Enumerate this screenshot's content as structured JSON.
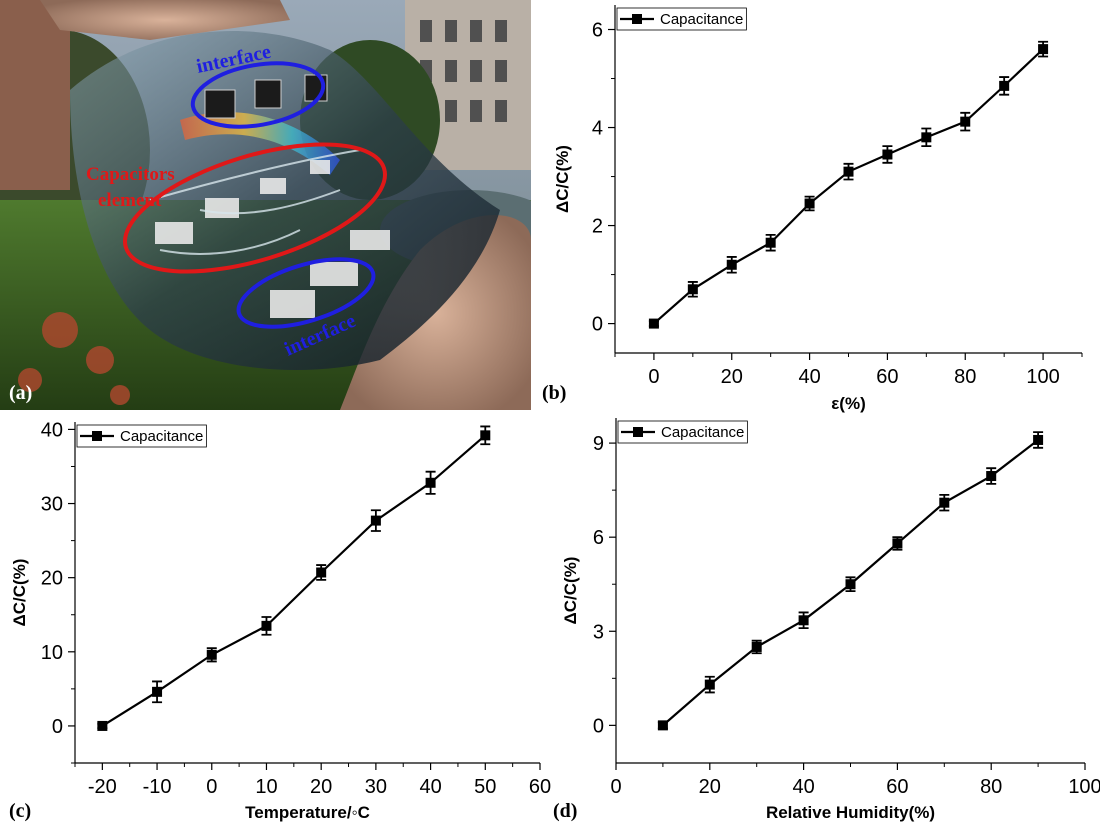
{
  "panels": {
    "a": "(a)",
    "b": "(b)",
    "c": "(c)",
    "d": "(d)"
  },
  "photo": {
    "annotations": {
      "interface_top": "interface",
      "capacitors_line1": "Capacitors",
      "capacitors_line2": "element",
      "interface_bottom": "interface"
    },
    "colors": {
      "interface": "#1f1fe0",
      "capacitors": "#e01818"
    }
  },
  "chart_data": [
    {
      "id": "b",
      "type": "line",
      "markers": "square",
      "xlabel": "ε(%)",
      "ylabel": "ΔC/C(%)",
      "xlim": [
        -10,
        110
      ],
      "ylim": [
        -0.6,
        6.5
      ],
      "xticks": [
        0,
        20,
        40,
        60,
        80,
        100
      ],
      "yticks": [
        0,
        2,
        4,
        6
      ],
      "legend": "top-left",
      "grid": false,
      "series": [
        {
          "name": "Capacitance",
          "x": [
            0,
            10,
            20,
            30,
            40,
            50,
            60,
            70,
            80,
            90,
            100
          ],
          "y": [
            0,
            0.7,
            1.2,
            1.65,
            2.45,
            3.1,
            3.45,
            3.8,
            4.12,
            4.85,
            5.6
          ],
          "err": [
            0.05,
            0.15,
            0.16,
            0.16,
            0.14,
            0.16,
            0.17,
            0.18,
            0.18,
            0.18,
            0.15
          ]
        }
      ]
    },
    {
      "id": "c",
      "type": "line",
      "markers": "square",
      "xlabel": "Temperature/◦C",
      "ylabel": "ΔC/C(%)",
      "xlim": [
        -25,
        60
      ],
      "ylim": [
        -5,
        41
      ],
      "xticks": [
        -20,
        -10,
        0,
        10,
        20,
        30,
        40,
        50,
        60
      ],
      "yticks": [
        0,
        10,
        20,
        30,
        40
      ],
      "legend": "top-left",
      "grid": false,
      "series": [
        {
          "name": "Capacitance",
          "x": [
            -20,
            -10,
            0,
            10,
            20,
            30,
            40,
            50
          ],
          "y": [
            0,
            4.6,
            9.6,
            13.5,
            20.7,
            27.7,
            32.8,
            39.2
          ],
          "err": [
            0.3,
            1.4,
            0.9,
            1.2,
            1.0,
            1.4,
            1.5,
            1.2
          ]
        }
      ]
    },
    {
      "id": "d",
      "type": "line",
      "markers": "square",
      "xlabel": "Relative Humidity(%)",
      "ylabel": "ΔC/C(%)",
      "xlim": [
        0,
        100
      ],
      "ylim": [
        -1.2,
        9.8
      ],
      "xticks": [
        0,
        20,
        40,
        60,
        80,
        100
      ],
      "yticks": [
        0,
        3,
        6,
        9
      ],
      "legend": "top-left",
      "grid": false,
      "series": [
        {
          "name": "Capacitance",
          "x": [
            10,
            20,
            30,
            40,
            50,
            60,
            70,
            80,
            90
          ],
          "y": [
            0,
            1.3,
            2.5,
            3.35,
            4.5,
            5.8,
            7.1,
            7.95,
            9.1
          ],
          "err": [
            0.1,
            0.25,
            0.2,
            0.25,
            0.22,
            0.2,
            0.25,
            0.25,
            0.25
          ]
        }
      ]
    }
  ]
}
